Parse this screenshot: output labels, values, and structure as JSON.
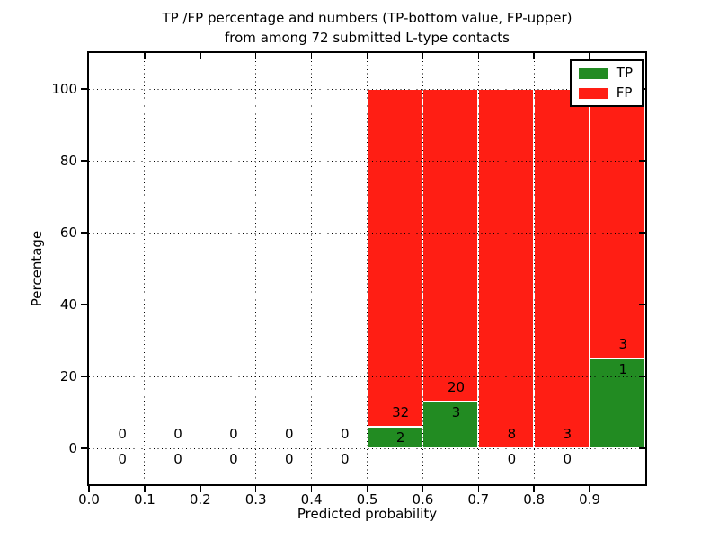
{
  "title_line1": "TP /FP percentage and numbers (TP-bottom value, FP-upper)",
  "title_line2": "from among 72 submitted L-type contacts",
  "axes": {
    "xlabel": "Predicted probability",
    "ylabel": "Percentage",
    "x_tick_labels": [
      "0.0",
      "0.1",
      "0.2",
      "0.3",
      "0.4",
      "0.5",
      "0.6",
      "0.7",
      "0.8",
      "0.9"
    ],
    "x_tick_values": [
      0.0,
      0.1,
      0.2,
      0.3,
      0.4,
      0.5,
      0.6,
      0.7,
      0.8,
      0.9
    ],
    "y_tick_labels": [
      "0",
      "20",
      "40",
      "60",
      "80",
      "100"
    ],
    "y_tick_values": [
      0,
      20,
      40,
      60,
      80,
      100
    ]
  },
  "legend": {
    "items": [
      {
        "label": "TP",
        "color": "#228b22"
      },
      {
        "label": "FP",
        "color": "#ff1e14"
      }
    ]
  },
  "chart_data": {
    "type": "bar",
    "stacked": true,
    "title": "TP /FP percentage and numbers (TP-bottom value, FP-upper) from among 72 submitted L-type contacts",
    "xlabel": "Predicted probability",
    "ylabel": "Percentage",
    "xlim": [
      0.0,
      1.0
    ],
    "ylim": [
      -10,
      110
    ],
    "grid": true,
    "grid_style": "dotted, drawn above bars",
    "legend_position": "upper right",
    "total_contacts": 72,
    "series": [
      {
        "name": "TP",
        "color": "#228b22"
      },
      {
        "name": "FP",
        "color": "#ff1e14"
      }
    ],
    "bins": [
      {
        "range": [
          0.0,
          0.1
        ],
        "tp_count": 0,
        "fp_count": 0,
        "tp_pct": 0,
        "fp_pct": 0
      },
      {
        "range": [
          0.1,
          0.2
        ],
        "tp_count": 0,
        "fp_count": 0,
        "tp_pct": 0,
        "fp_pct": 0
      },
      {
        "range": [
          0.2,
          0.3
        ],
        "tp_count": 0,
        "fp_count": 0,
        "tp_pct": 0,
        "fp_pct": 0
      },
      {
        "range": [
          0.3,
          0.4
        ],
        "tp_count": 0,
        "fp_count": 0,
        "tp_pct": 0,
        "fp_pct": 0
      },
      {
        "range": [
          0.4,
          0.5
        ],
        "tp_count": 0,
        "fp_count": 0,
        "tp_pct": 0,
        "fp_pct": 0
      },
      {
        "range": [
          0.5,
          0.6
        ],
        "tp_count": 2,
        "fp_count": 32,
        "tp_pct": 5.88,
        "fp_pct": 94.12
      },
      {
        "range": [
          0.6,
          0.7
        ],
        "tp_count": 3,
        "fp_count": 20,
        "tp_pct": 13.04,
        "fp_pct": 86.96
      },
      {
        "range": [
          0.7,
          0.8
        ],
        "tp_count": 0,
        "fp_count": 8,
        "tp_pct": 0,
        "fp_pct": 100
      },
      {
        "range": [
          0.8,
          0.9
        ],
        "tp_count": 0,
        "fp_count": 3,
        "tp_pct": 0,
        "fp_pct": 100
      },
      {
        "range": [
          0.9,
          1.0
        ],
        "tp_count": 1,
        "fp_count": 3,
        "tp_pct": 25,
        "fp_pct": 75
      }
    ]
  }
}
